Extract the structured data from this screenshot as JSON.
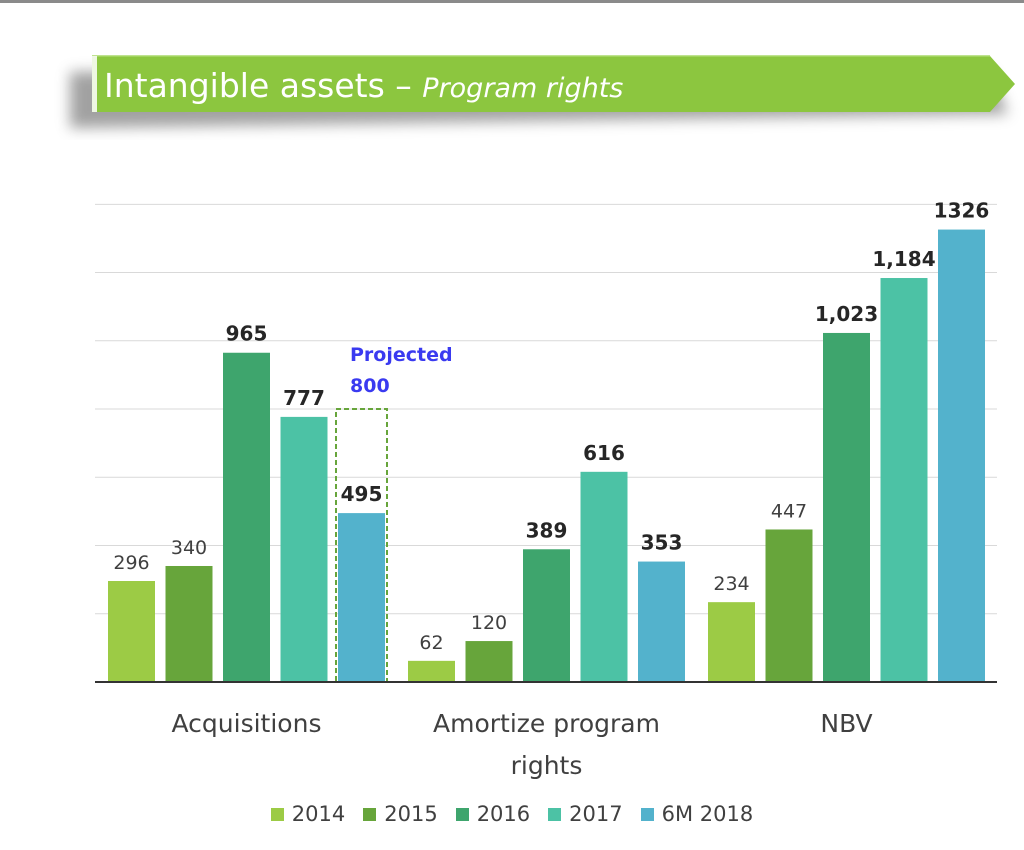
{
  "header": {
    "title_main": "Intangible assets – ",
    "title_sub": "Program rights",
    "color": "#8cc63f"
  },
  "chart_data": {
    "type": "bar",
    "categories": [
      "Acquisitions",
      "Amortize program rights",
      "NBV"
    ],
    "category_lines": [
      [
        "Acquisitions"
      ],
      [
        "Amortize program",
        "rights"
      ],
      [
        "NBV"
      ]
    ],
    "series": [
      {
        "name": "2014",
        "color": "#9ccb45",
        "values": [
          296,
          62,
          234
        ],
        "labels": [
          "296",
          "62",
          "234"
        ],
        "bold": [
          false,
          false,
          false
        ]
      },
      {
        "name": "2015",
        "color": "#67a53b",
        "values": [
          340,
          120,
          447
        ],
        "labels": [
          "340",
          "120",
          "447"
        ],
        "bold": [
          false,
          false,
          false
        ]
      },
      {
        "name": "2016",
        "color": "#3ea56d",
        "values": [
          965,
          389,
          1023
        ],
        "labels": [
          "965",
          "389",
          "1,023"
        ],
        "bold": [
          true,
          true,
          true
        ]
      },
      {
        "name": "2017",
        "color": "#4cc2a5",
        "values": [
          777,
          616,
          1184
        ],
        "labels": [
          "777",
          "616",
          "1,184"
        ],
        "bold": [
          true,
          true,
          true
        ]
      },
      {
        "name": "6M 2018",
        "color": "#53b2cc",
        "values": [
          495,
          353,
          1326
        ],
        "labels": [
          "495",
          "353",
          "1326"
        ],
        "bold": [
          true,
          true,
          true
        ]
      }
    ],
    "ylim": [
      0,
      1400
    ],
    "grid": true,
    "annotation": {
      "category": "Acquisitions",
      "series": "6M 2018",
      "value": 800,
      "lines": [
        "Projected",
        "800"
      ],
      "color": "#3a3af0",
      "outline_color": "#67a53b"
    },
    "legend": "bottom"
  }
}
